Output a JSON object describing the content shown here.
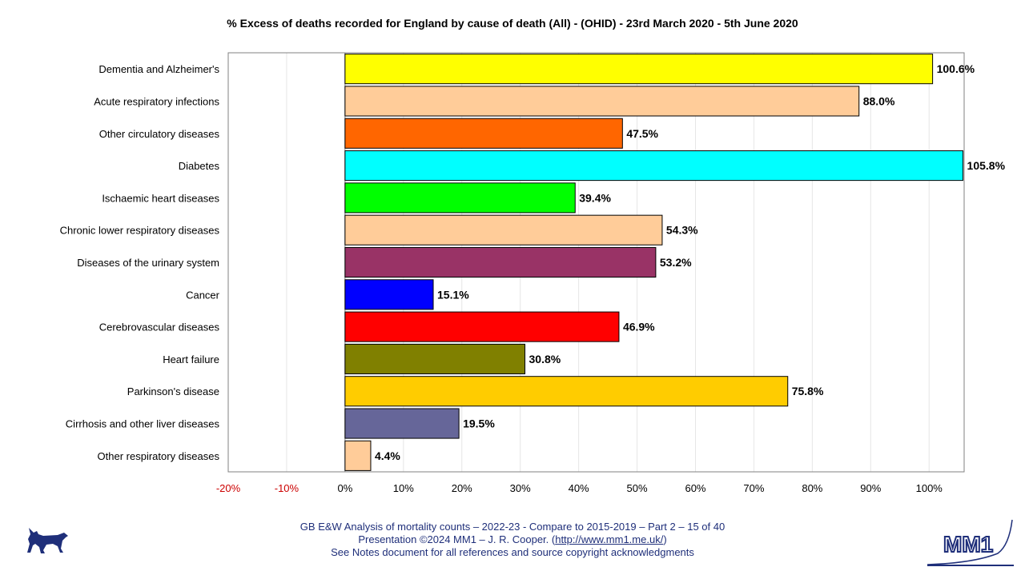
{
  "chart_data": {
    "type": "bar",
    "orientation": "horizontal",
    "title": "% Excess of deaths recorded for England by cause of death (All) - (OHID) - 23rd March 2020 - 5th June 2020",
    "categories": [
      "Dementia and Alzheimer's",
      "Acute respiratory infections",
      "Other circulatory diseases",
      "Diabetes",
      "Ischaemic heart diseases",
      "Chronic lower respiratory diseases",
      "Diseases of the urinary system",
      "Cancer",
      "Cerebrovascular diseases",
      "Heart failure",
      "Parkinson's disease",
      "Cirrhosis and other liver diseases",
      "Other respiratory diseases"
    ],
    "values": [
      100.6,
      88.0,
      47.5,
      105.8,
      39.4,
      54.3,
      53.2,
      15.1,
      46.9,
      30.8,
      75.8,
      19.5,
      4.4
    ],
    "data_labels": [
      "100.6%",
      "88.0%",
      "47.5%",
      "105.8%",
      "39.4%",
      "54.3%",
      "53.2%",
      "15.1%",
      "46.9%",
      "30.8%",
      "75.8%",
      "19.5%",
      "4.4%"
    ],
    "colors": [
      "#ffff00",
      "#ffcc99",
      "#ff6600",
      "#00ffff",
      "#00ff00",
      "#ffcc99",
      "#993366",
      "#0000ff",
      "#ff0000",
      "#808000",
      "#ffcc00",
      "#666699",
      "#ffcc99"
    ],
    "xlim": [
      -20,
      106
    ],
    "xticks": [
      -20,
      -10,
      0,
      10,
      20,
      30,
      40,
      50,
      60,
      70,
      80,
      90,
      100
    ],
    "xtick_labels": [
      "-20%",
      "-10%",
      "0%",
      "10%",
      "20%",
      "30%",
      "40%",
      "50%",
      "60%",
      "70%",
      "80%",
      "90%",
      "100%"
    ],
    "negative_tick_color": "#cc0000",
    "grid": "vertical"
  },
  "footer": {
    "line1": "GB E&W Analysis of mortality counts – 2022-23 - Compare to 2015-2019 – Part 2 – 15 of 40",
    "line2_prefix": "Presentation ©2024 MM1 – J. R. Cooper. (",
    "line2_link": "http://www.mm1.me.uk/",
    "line2_suffix": ")",
    "line3": "See Notes document for all references and source copyright acknowledgments"
  },
  "logo": {
    "text": "MM1"
  },
  "colors": {
    "footer_text": "#1f2f7a",
    "logo": "#1f2f7a"
  }
}
